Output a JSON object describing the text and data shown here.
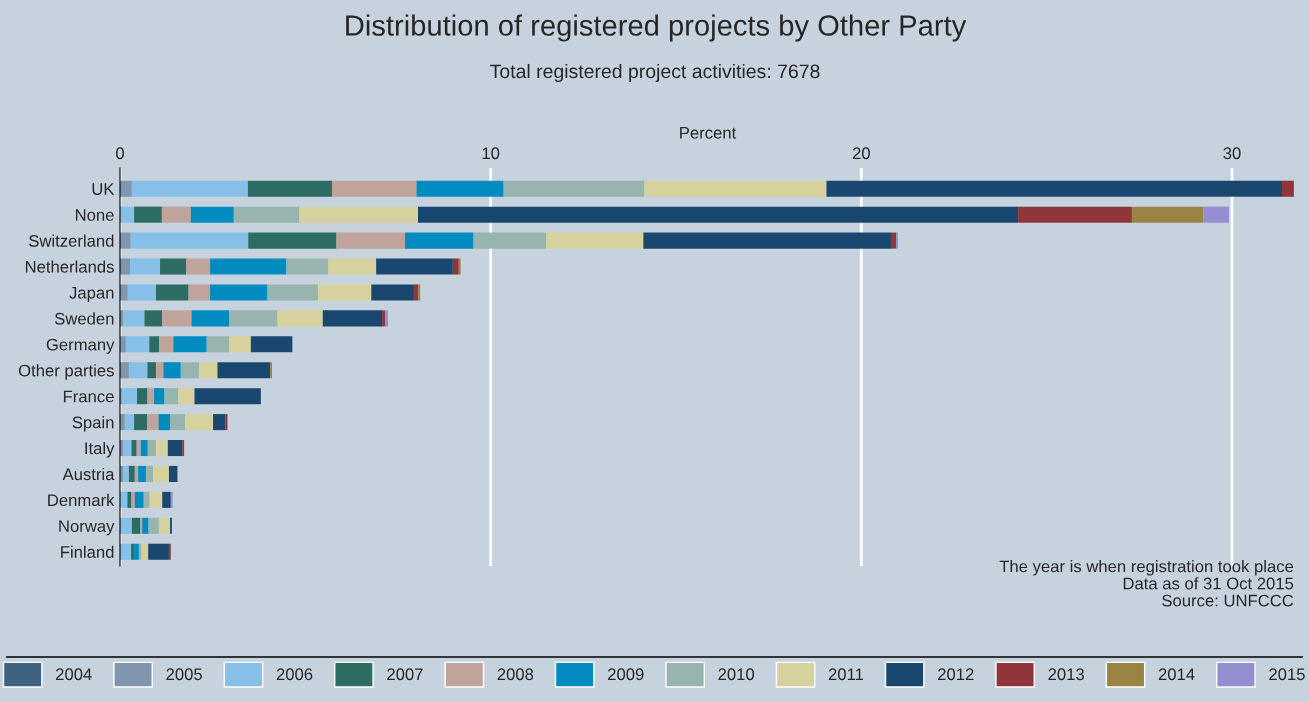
{
  "chart_data": {
    "type": "bar",
    "orientation": "horizontal",
    "stacked": true,
    "title": "Distribution of registered projects by Other Party",
    "subtitle": "Total registered project activities: 7678",
    "xlabel": "Percent",
    "categories": [
      "UK",
      "None",
      "Switzerland",
      "Netherlands",
      "Japan",
      "Sweden",
      "Germany",
      "Other parties",
      "France",
      "Spain",
      "Italy",
      "Austria",
      "Denmark",
      "Norway",
      "Finland"
    ],
    "xlim": [
      0,
      31.7
    ],
    "xticks": [
      0,
      10,
      20,
      30
    ],
    "grid": "x",
    "legend": "bottom",
    "series": [
      {
        "name": "2004",
        "color": "#3e6381",
        "values": [
          0,
          0,
          0,
          0,
          0,
          0,
          0,
          0,
          0,
          0,
          0,
          0,
          0,
          0,
          0
        ]
      },
      {
        "name": "2005",
        "color": "#7f96ad",
        "values": [
          0.32,
          0,
          0.29,
          0.27,
          0.21,
          0.09,
          0.16,
          0.24,
          0.05,
          0.13,
          0.09,
          0.09,
          0,
          0,
          0
        ]
      },
      {
        "name": "2006",
        "color": "#86c0e9",
        "values": [
          3.13,
          0.38,
          3.17,
          0.81,
          0.76,
          0.57,
          0.63,
          0.5,
          0.41,
          0.25,
          0.22,
          0.15,
          0.2,
          0.32,
          0.3
        ]
      },
      {
        "name": "2007",
        "color": "#2c6c63",
        "values": [
          2.27,
          0.75,
          2.38,
          0.71,
          0.88,
          0.48,
          0.27,
          0.23,
          0.28,
          0.35,
          0.14,
          0.16,
          0.11,
          0.23,
          0.08
        ]
      },
      {
        "name": "2008",
        "color": "#c0a39b",
        "values": [
          2.28,
          0.78,
          1.85,
          0.64,
          0.58,
          0.79,
          0.38,
          0.2,
          0.18,
          0.31,
          0.11,
          0.09,
          0.09,
          0.05,
          null
        ]
      },
      {
        "name": "2009",
        "color": "#028bbf",
        "values": [
          2.35,
          1.16,
          1.85,
          2.06,
          1.55,
          1.02,
          0.9,
          0.47,
          0.28,
          0.31,
          0.19,
          0.21,
          0.24,
          0.17,
          0.13
        ]
      },
      {
        "name": "2010",
        "color": "#97b5ae",
        "values": [
          3.8,
          1.77,
          1.96,
          1.13,
          1.36,
          1.3,
          0.61,
          0.49,
          0.37,
          0.41,
          0.22,
          0.19,
          0.16,
          0.28,
          0.07
        ]
      },
      {
        "name": "2011",
        "color": "#d7d29d",
        "values": [
          4.91,
          3.2,
          2.62,
          1.29,
          1.44,
          1.22,
          0.58,
          0.5,
          0.44,
          0.75,
          0.32,
          0.43,
          0.34,
          0.3,
          0.18
        ]
      },
      {
        "name": "2012",
        "color": "#1a4770",
        "values": [
          12.29,
          16.19,
          6.68,
          2.07,
          1.15,
          1.6,
          1.12,
          1.42,
          1.79,
          0.34,
          0.39,
          0.23,
          0.23,
          0.05,
          0.56
        ]
      },
      {
        "name": "2013",
        "color": "#903539",
        "values": [
          0.32,
          3.07,
          0.14,
          0.16,
          0.12,
          0.09,
          0,
          0,
          0,
          0.05,
          0.05,
          0,
          0,
          0,
          0.05
        ]
      },
      {
        "name": "2014",
        "color": "#9b8443",
        "values": [
          0,
          1.93,
          0,
          0.05,
          0.05,
          0,
          0,
          0.05,
          0,
          0,
          0,
          0,
          0,
          0,
          0
        ]
      },
      {
        "name": "2015",
        "color": "#948fd0",
        "values": [
          0,
          0.69,
          0.05,
          0,
          0,
          0.07,
          0,
          0,
          null,
          0,
          0,
          0,
          0.05,
          0,
          0
        ]
      }
    ],
    "annotations": [
      "The year is when registration took place",
      "Data as of 31 Oct 2015",
      "Source: UNFCCC"
    ]
  }
}
